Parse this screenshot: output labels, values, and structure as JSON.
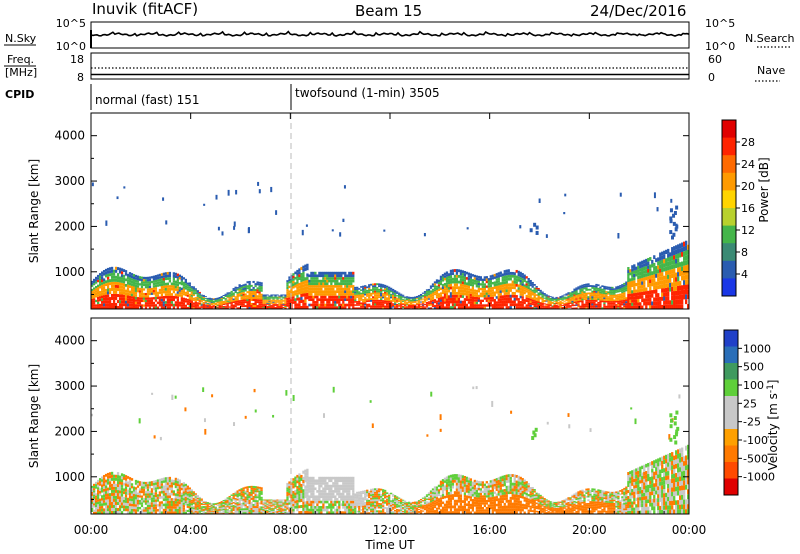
{
  "header": {
    "station": "Inuvik (fitACF)",
    "beam": "Beam 15",
    "date": "24/Dec/2016"
  },
  "noise_panel": {
    "left_label": "N.Sky",
    "left_ticks": [
      "10^5",
      "10^0"
    ],
    "right_ticks": [
      "10^5",
      "10^0"
    ],
    "right_label": "N.Search"
  },
  "freq_panel": {
    "left_label_1": "Freq.",
    "left_label_2": "[MHz]",
    "left_ticks": [
      "18",
      "8"
    ],
    "right_ticks": [
      "60",
      "0"
    ],
    "right_label": "Nave"
  },
  "cpid_panel": {
    "label": "CPID",
    "segments": [
      "normal (fast) 151",
      "twofsound (1-min) 3505"
    ]
  },
  "chart_data": [
    {
      "type": "heatmap",
      "quantity": "Power",
      "ylabel": "Slant Range [km]",
      "xlabel": "Time UT",
      "x_ticks": [
        "00:00",
        "04:00",
        "08:00",
        "12:00",
        "16:00",
        "20:00",
        "00:00"
      ],
      "x_range_hours": [
        0,
        24
      ],
      "y_ticks": [
        1000,
        2000,
        3000,
        4000
      ],
      "ylim": [
        180,
        4500
      ],
      "colorbar_label": "Power [dB]",
      "colorbar_ticks": [
        "4",
        "8",
        "12",
        "16",
        "20",
        "24",
        "28"
      ],
      "colorbar_colors": [
        "#1a37e6",
        "#2a5cb0",
        "#3a8a74",
        "#44b54a",
        "#b8d12e",
        "#ffd400",
        "#ff9a00",
        "#ff6a00",
        "#ff2400",
        "#e00000"
      ],
      "backscatter_band_km": [
        180,
        1100
      ],
      "scattered_echoes_km": [
        1800,
        3000
      ],
      "dominant_colors_low_range": [
        "#ff2400",
        "#ff9a00",
        "#44b54a",
        "#2a5cb0"
      ]
    },
    {
      "type": "heatmap",
      "quantity": "Velocity",
      "ylabel": "Slant Range [km]",
      "xlabel": "Time UT",
      "x_ticks": [
        "00:00",
        "04:00",
        "08:00",
        "12:00",
        "16:00",
        "20:00",
        "00:00"
      ],
      "x_range_hours": [
        0,
        24
      ],
      "y_ticks": [
        1000,
        2000,
        3000,
        4000
      ],
      "ylim": [
        180,
        4500
      ],
      "colorbar_label": "Velocity [m s^-1]",
      "colorbar_ticks": [
        "1000",
        "500",
        "100",
        "25",
        "-25",
        "-100",
        "-500",
        "-1000"
      ],
      "colorbar_colors": [
        "#2040c8",
        "#2a6eb8",
        "#3f9a5f",
        "#5fcf3a",
        "#c8c8c8",
        "#c8c8c8",
        "#ffa000",
        "#ff7a00",
        "#ff4a00",
        "#e00000"
      ],
      "ground_scatter_color": "#c8c8c8",
      "backscatter_band_km": [
        180,
        1100
      ],
      "scattered_echoes_km": [
        1800,
        3000
      ],
      "dominant_colors_low_range": [
        "#ff7a00",
        "#c8c8c8",
        "#5fcf3a"
      ]
    }
  ],
  "bottom_axis": {
    "xlabel": "Time UT",
    "ticks": [
      "00:00",
      "04:00",
      "08:00",
      "12:00",
      "16:00",
      "20:00",
      "00:00"
    ]
  }
}
